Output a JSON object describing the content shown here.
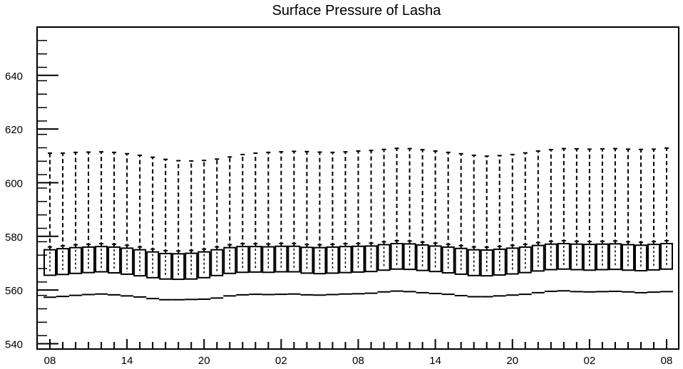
{
  "chart_data": {
    "type": "boxplot",
    "title": "Surface Pressure of Lasha",
    "xlabel": "",
    "ylabel": "",
    "ylim": [
      538,
      658
    ],
    "y_ticks": [
      540,
      560,
      580,
      600,
      620,
      640
    ],
    "x_tick_labels": [
      "08",
      "14",
      "20",
      "02",
      "08",
      "14",
      "20",
      "02",
      "08"
    ],
    "grid": false,
    "boxes": {
      "upper_whisker": [
        611.0,
        611.0,
        611.3,
        611.4,
        611.5,
        611.3,
        610.8,
        610.2,
        609.5,
        608.7,
        608.2,
        608.1,
        608.3,
        608.8,
        609.6,
        610.5,
        611.0,
        611.3,
        611.5,
        611.7,
        611.6,
        611.4,
        611.3,
        611.5,
        611.8,
        612.0,
        612.4,
        612.8,
        612.7,
        612.3,
        611.8,
        611.3,
        610.8,
        610.2,
        609.9,
        610.1,
        610.5,
        611.1,
        611.8,
        612.3,
        612.7,
        612.6,
        612.5,
        612.6,
        612.7,
        612.5,
        612.4,
        612.5,
        612.9
      ],
      "q3": [
        575.0,
        575.4,
        575.8,
        576.0,
        576.2,
        576.0,
        575.6,
        575.0,
        574.2,
        573.6,
        573.5,
        573.7,
        574.2,
        575.0,
        575.8,
        576.2,
        576.2,
        576.1,
        576.3,
        576.3,
        575.9,
        575.8,
        576.0,
        576.2,
        576.3,
        576.4,
        576.9,
        577.3,
        577.2,
        576.8,
        576.4,
        576.0,
        575.5,
        575.0,
        574.9,
        575.2,
        575.6,
        576.0,
        576.6,
        577.1,
        577.3,
        577.1,
        577.0,
        577.1,
        577.2,
        576.9,
        576.7,
        577.0,
        577.3
      ],
      "median": [
        570.0,
        570.3,
        570.7,
        571.0,
        571.2,
        570.9,
        570.4,
        569.9,
        569.2,
        568.6,
        568.4,
        568.6,
        569.1,
        569.9,
        570.7,
        571.1,
        571.1,
        571.0,
        571.2,
        571.2,
        570.8,
        570.6,
        570.8,
        571.0,
        571.1,
        571.3,
        571.8,
        572.2,
        572.1,
        571.7,
        571.3,
        570.9,
        570.4,
        569.9,
        569.8,
        570.1,
        570.5,
        570.9,
        571.5,
        572.0,
        572.2,
        572.0,
        571.9,
        572.0,
        572.1,
        571.8,
        571.6,
        571.9,
        572.2
      ],
      "q1": [
        565.5,
        565.8,
        566.2,
        566.5,
        566.8,
        566.4,
        565.9,
        565.3,
        564.6,
        564.1,
        564.0,
        564.1,
        564.6,
        565.4,
        566.2,
        566.6,
        566.7,
        566.6,
        566.8,
        566.8,
        566.3,
        566.1,
        566.3,
        566.5,
        566.7,
        566.9,
        567.4,
        567.8,
        567.7,
        567.3,
        566.9,
        566.4,
        565.9,
        565.4,
        565.3,
        565.6,
        566.0,
        566.5,
        567.1,
        567.6,
        567.8,
        567.6,
        567.4,
        567.6,
        567.7,
        567.4,
        567.2,
        567.5,
        567.8
      ],
      "lower_whisker": [
        557.3,
        557.6,
        558.0,
        558.3,
        558.5,
        558.2,
        557.8,
        557.4,
        556.8,
        556.4,
        556.4,
        556.5,
        556.6,
        557.0,
        557.8,
        558.2,
        558.4,
        558.3,
        558.4,
        558.5,
        558.2,
        558.1,
        558.3,
        558.5,
        558.6,
        558.8,
        559.3,
        559.6,
        559.4,
        559.0,
        558.7,
        558.4,
        557.9,
        557.5,
        557.5,
        557.8,
        558.1,
        558.4,
        559.0,
        559.5,
        559.7,
        559.4,
        559.3,
        559.4,
        559.5,
        559.3,
        559.0,
        559.2,
        559.4
      ]
    }
  }
}
